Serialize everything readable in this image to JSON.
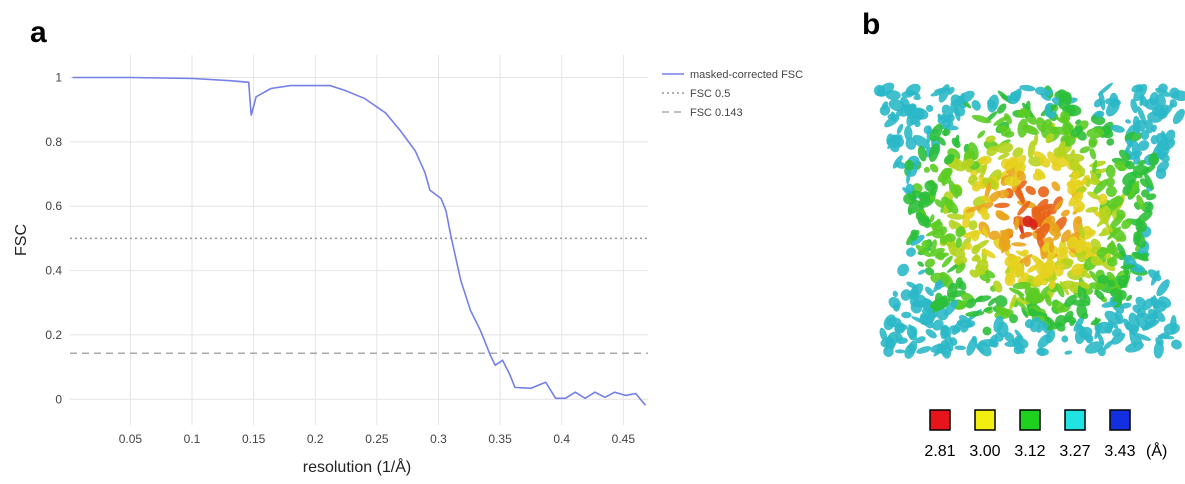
{
  "panel_labels": [
    "a",
    "b"
  ],
  "chart_data": {
    "type": "line",
    "xlabel": "resolution (1/Å)",
    "ylabel": "FSC",
    "xlim": [
      0.001,
      0.47
    ],
    "ylim": [
      -0.08,
      1.07
    ],
    "xticks": [
      0.05,
      0.1,
      0.15,
      0.2,
      0.25,
      0.3,
      0.35,
      0.4,
      0.45
    ],
    "yticks": [
      0,
      0.2,
      0.4,
      0.6,
      0.8,
      1
    ],
    "grid": true,
    "series": [
      {
        "name": "masked-corrected FSC",
        "color": "#7480e8",
        "x": [
          0.003,
          0.05,
          0.101,
          0.131,
          0.146,
          0.148,
          0.152,
          0.164,
          0.18,
          0.212,
          0.224,
          0.24,
          0.257,
          0.269,
          0.281,
          0.289,
          0.293,
          0.302,
          0.306,
          0.31,
          0.318,
          0.326,
          0.334,
          0.342,
          0.346,
          0.352,
          0.358,
          0.362,
          0.375,
          0.387,
          0.395,
          0.403,
          0.411,
          0.419,
          0.427,
          0.435,
          0.443,
          0.452,
          0.46,
          0.468
        ],
        "values": [
          1.0,
          1.0,
          0.997,
          0.99,
          0.985,
          0.882,
          0.94,
          0.966,
          0.975,
          0.975,
          0.96,
          0.935,
          0.89,
          0.835,
          0.773,
          0.705,
          0.65,
          0.624,
          0.587,
          0.509,
          0.37,
          0.276,
          0.214,
          0.137,
          0.106,
          0.121,
          0.075,
          0.037,
          0.034,
          0.053,
          0.003,
          0.003,
          0.022,
          0.003,
          0.022,
          0.006,
          0.022,
          0.012,
          0.018,
          -0.019
        ]
      }
    ],
    "reference_lines": [
      {
        "name": "FSC 0.5",
        "value": 0.5,
        "color": "#999999",
        "dash": "dotted"
      },
      {
        "name": "FSC 0.143",
        "value": 0.143,
        "color": "#aaaaaa",
        "dash": "dashed"
      }
    ]
  },
  "color_key": {
    "colors": [
      "#e8141b",
      "#f2ee12",
      "#1fd11f",
      "#22e3e3",
      "#1230e0"
    ],
    "labels": [
      "2.81",
      "3.00",
      "3.12",
      "3.27",
      "3.43"
    ],
    "unit": "(Å)"
  }
}
